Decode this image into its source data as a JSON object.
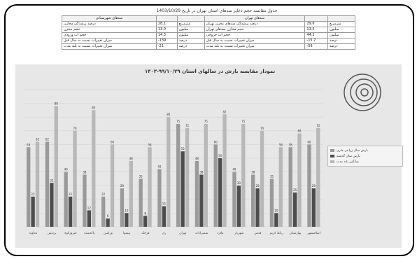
{
  "header": {
    "title": "جدول مقایسه حجم ذخایر سدهای استان تهران در تاریخ 1403/10/29"
  },
  "table": {
    "headers": [
      "سدهای شهرستانی",
      "",
      "",
      "سدهای تهران",
      "",
      ""
    ],
    "rows": [
      [
        "درصد پرشدگی مخازن",
        "28.1",
        "مترمربع",
        "درصد پرشدگی سدهای مخزن تهران",
        "29.6",
        "مترمربع"
      ],
      [
        "حجم مخزن",
        "13.0",
        "میلیون",
        "حجم مخازن سدهای تهران",
        "13.5",
        "میلیون"
      ],
      [
        "حجم آب ورودی",
        "14.3",
        "میلیون",
        "حجم آب خروجی",
        "44.2",
        "میلیون"
      ],
      [
        "میزان تغییرات نسبت به سال قبل",
        "-139",
        "درصد",
        "میزان تغییرات نسبت به سال قبل",
        "-15.7",
        "درصد"
      ],
      [
        "میزان تغییرات نسبت به بلند مدت",
        "-21",
        "درصد",
        "میزان تغییرات نسبت به بلند مدت",
        "-59",
        "درصد"
      ]
    ]
  },
  "chart_data": {
    "type": "bar",
    "title": "نمودار مقایسه بارش در سالهای استان ۹۹/۱۰/۲۹-۱۴۰۳",
    "categories": [
      "دماوند",
      "پردیس",
      "فیروزکوه",
      "پاکدشت",
      "ورامین",
      "پیشوا",
      "قرچک",
      "ری",
      "تهران",
      "شمیرانات",
      "ملارد",
      "شهریار",
      "قدس",
      "رباط کریم",
      "بهارستان",
      "اسلامشهر"
    ],
    "series": [
      {
        "name": "بارش سال زراعی جاری",
        "values": [
          58,
          62,
          40,
          38,
          22,
          28,
          35,
          42,
          75,
          48,
          60,
          40,
          38,
          35,
          58,
          60
        ]
      },
      {
        "name": "بارش سال گذشته",
        "values": [
          22,
          32,
          22,
          12,
          6,
          10,
          8,
          15,
          55,
          38,
          50,
          30,
          28,
          10,
          25,
          28
        ]
      },
      {
        "name": "میانگین بلند مدت",
        "values": [
          62,
          88,
          70,
          85,
          60,
          48,
          58,
          80,
          72,
          75,
          82,
          75,
          70,
          58,
          68,
          72
        ]
      }
    ],
    "colors": [
      "#9a9a9a",
      "#4d4d4d",
      "#b8b8b8"
    ],
    "ylim": [
      0,
      100
    ],
    "grid": true,
    "legend": "right"
  }
}
